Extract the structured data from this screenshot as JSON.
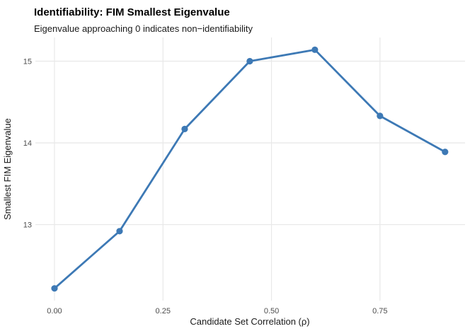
{
  "chart_data": {
    "type": "line",
    "title": "Identifiability: FIM Smallest Eigenvalue",
    "subtitle": "Eigenvalue approaching 0 indicates non−identifiability",
    "xlabel": "Candidate Set Correlation (ρ)",
    "ylabel": "Smallest FIM Eigenvalue",
    "x": [
      0.0,
      0.15,
      0.3,
      0.45,
      0.6,
      0.75,
      0.9
    ],
    "y": [
      12.22,
      12.92,
      14.17,
      15.0,
      15.14,
      14.33,
      13.89
    ],
    "xticks": [
      0.0,
      0.25,
      0.5,
      0.75
    ],
    "xtick_labels": [
      "0.00",
      "0.25",
      "0.50",
      "0.75"
    ],
    "yticks": [
      13,
      14,
      15
    ],
    "ytick_labels": [
      "13",
      "14",
      "15"
    ],
    "xlim": [
      -0.044,
      0.946
    ],
    "ylim": [
      12.07,
      15.29
    ],
    "grid": "major-only",
    "legend": "none",
    "marker": "point",
    "colors": {
      "series": "#3d79b5",
      "grid": "#e8e8e8",
      "tick_text": "#4d4d4d",
      "text": "#1a1a1a",
      "background": "#ffffff"
    }
  }
}
